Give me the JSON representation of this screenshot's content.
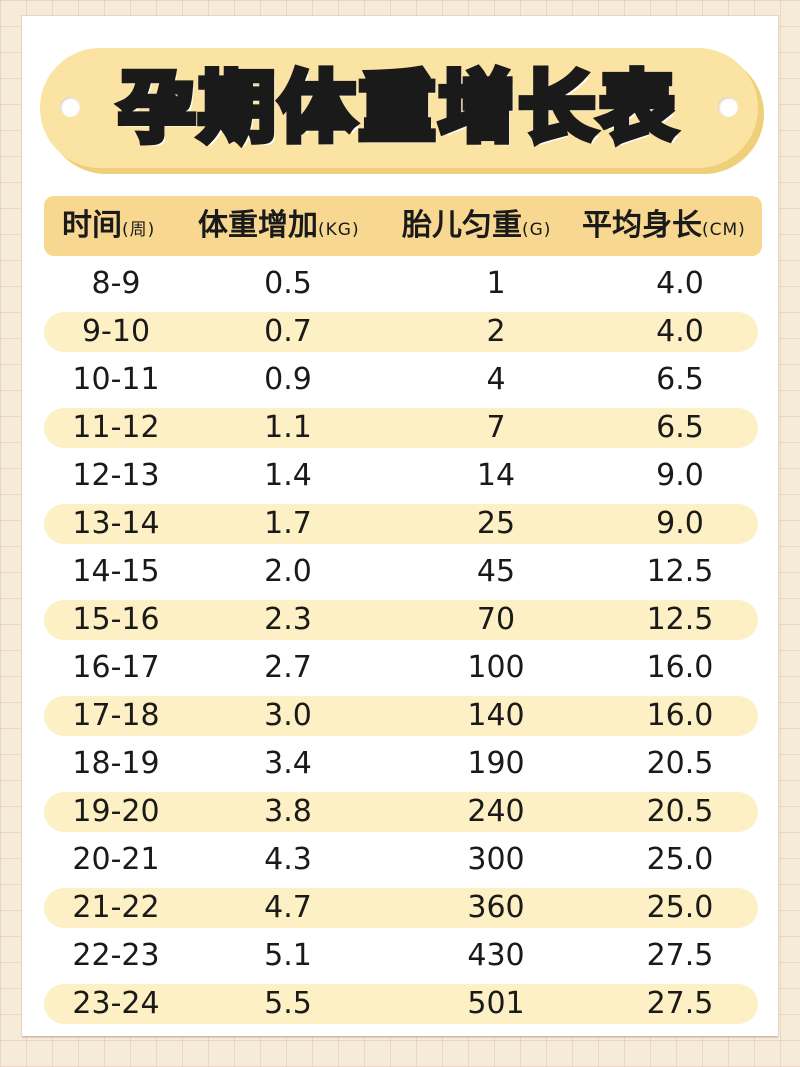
{
  "title": "孕期体重增长表",
  "headers": [
    {
      "main": "时间",
      "unit": "(周)"
    },
    {
      "main": "体重增加",
      "unit": "(KG)"
    },
    {
      "main": "胎儿匀重",
      "unit": "(G)"
    },
    {
      "main": "平均身长",
      "unit": "(CM)"
    }
  ],
  "rows": [
    [
      "8-9",
      "0.5",
      "1",
      "4.0"
    ],
    [
      "9-10",
      "0.7",
      "2",
      "4.0"
    ],
    [
      "10-11",
      "0.9",
      "4",
      "6.5"
    ],
    [
      "11-12",
      "1.1",
      "7",
      "6.5"
    ],
    [
      "12-13",
      "1.4",
      "14",
      "9.0"
    ],
    [
      "13-14",
      "1.7",
      "25",
      "9.0"
    ],
    [
      "14-15",
      "2.0",
      "45",
      "12.5"
    ],
    [
      "15-16",
      "2.3",
      "70",
      "12.5"
    ],
    [
      "16-17",
      "2.7",
      "100",
      "16.0"
    ],
    [
      "17-18",
      "3.0",
      "140",
      "16.0"
    ],
    [
      "18-19",
      "3.4",
      "190",
      "20.5"
    ],
    [
      "19-20",
      "3.8",
      "240",
      "20.5"
    ],
    [
      "20-21",
      "4.3",
      "300",
      "25.0"
    ],
    [
      "21-22",
      "4.7",
      "360",
      "25.0"
    ],
    [
      "22-23",
      "5.1",
      "430",
      "27.5"
    ],
    [
      "23-24",
      "5.5",
      "501",
      "27.5"
    ]
  ]
}
